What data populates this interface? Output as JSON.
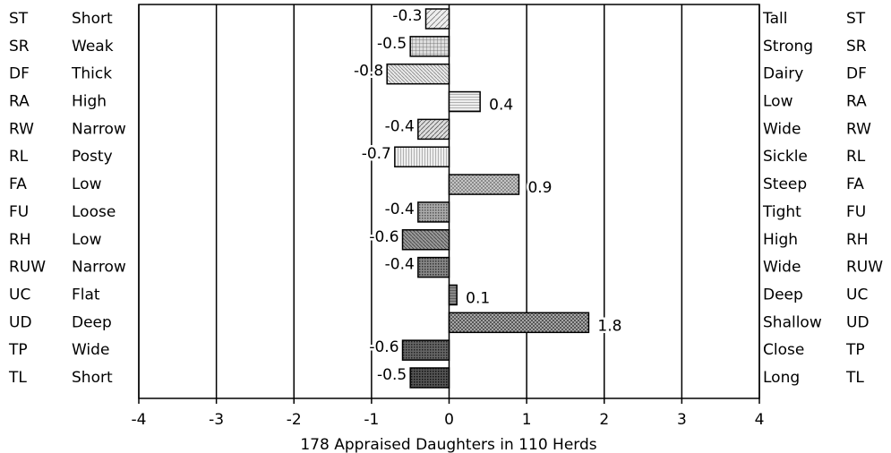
{
  "chart_data": {
    "type": "bar",
    "orientation": "horizontal",
    "categories": [
      "ST",
      "SR",
      "DF",
      "RA",
      "RW",
      "RL",
      "FA",
      "FU",
      "RH",
      "RUW",
      "UC",
      "UD",
      "TP",
      "TL"
    ],
    "left_labels": [
      "Short",
      "Weak",
      "Thick",
      "High",
      "Narrow",
      "Posty",
      "Low",
      "Loose",
      "Low",
      "Narrow",
      "Flat",
      "Deep",
      "Wide",
      "Short"
    ],
    "right_labels": [
      "Tall",
      "Strong",
      "Dairy",
      "Low",
      "Wide",
      "Sickle",
      "Steep",
      "Tight",
      "High",
      "Wide",
      "Deep",
      "Shallow",
      "Close",
      "Long"
    ],
    "values": [
      -0.3,
      -0.5,
      -0.8,
      0.4,
      -0.4,
      -0.7,
      0.9,
      -0.4,
      -0.6,
      -0.4,
      0.1,
      1.8,
      -0.6,
      -0.5
    ],
    "xlim": [
      -4,
      4
    ],
    "xticks": [
      -4,
      -3,
      -2,
      -1,
      0,
      1,
      2,
      3,
      4
    ],
    "grid": true,
    "xlabel": "178 Appraised Daughters in 110 Herds"
  }
}
